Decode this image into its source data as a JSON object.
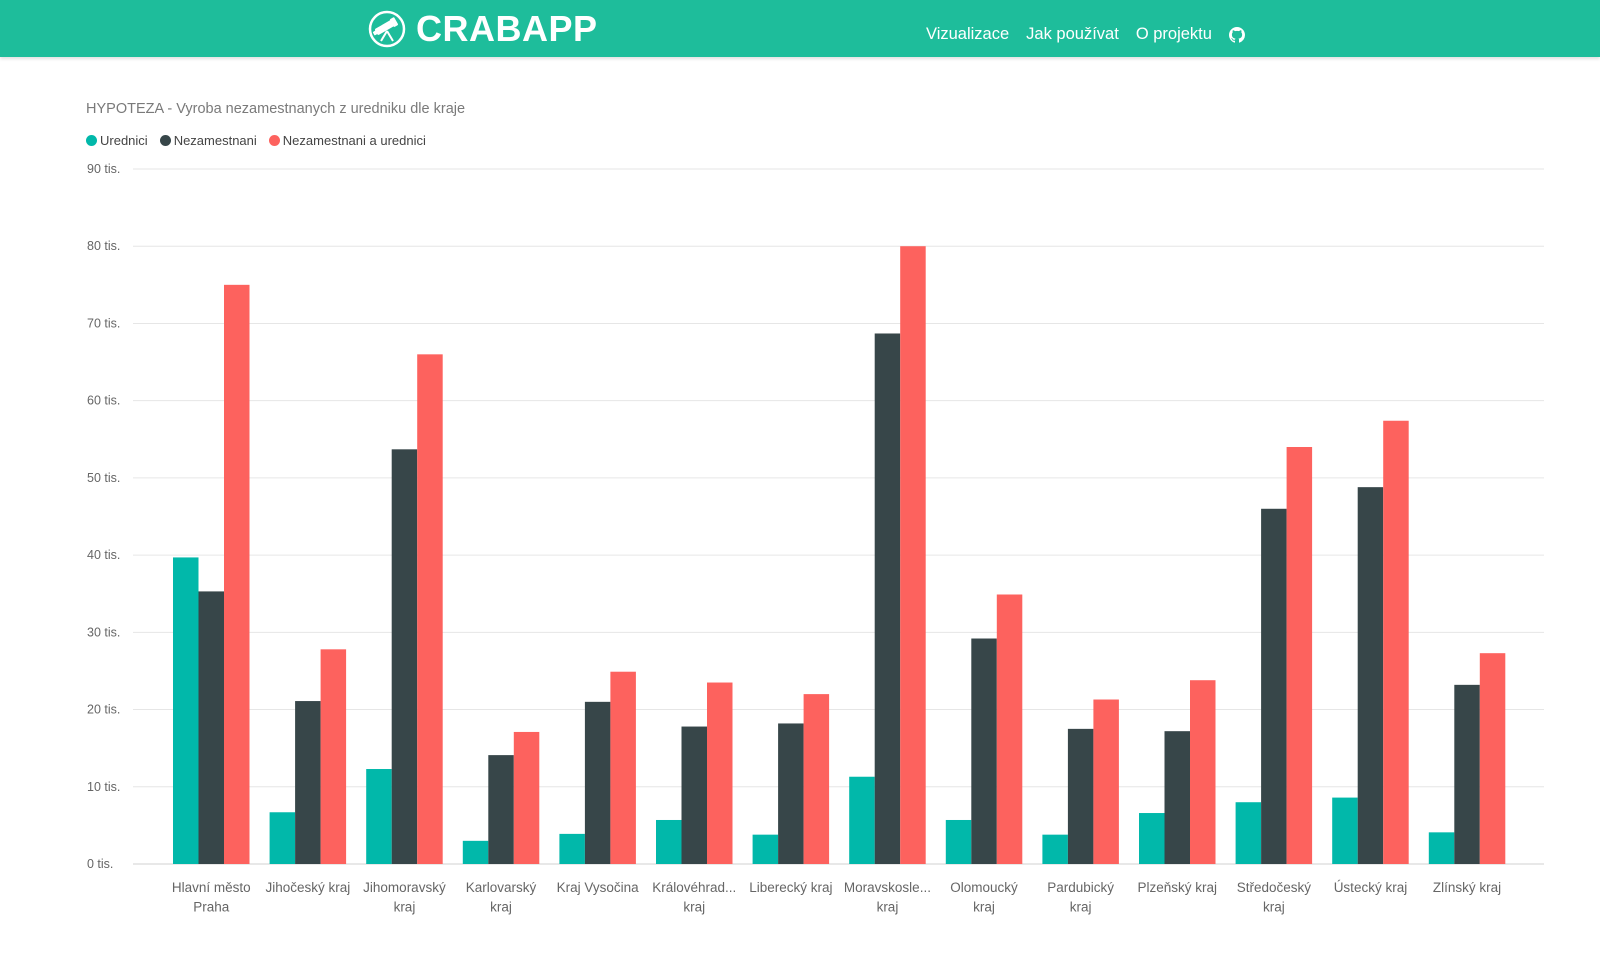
{
  "navbar": {
    "brand": "CRABAPP",
    "links": [
      "Vizualizace",
      "Jak používat",
      "O projektu"
    ],
    "github_icon": "github-icon",
    "logo_icon": "telescope-icon",
    "background_color": "#1ebd9b"
  },
  "chart_data": {
    "type": "bar",
    "title": "HYPOTEZA - Vyroba nezamestnanych z uredniku dle kraje",
    "xlabel": "",
    "ylabel": "",
    "ylim": [
      0,
      90000
    ],
    "ytick_values": [
      0,
      10000,
      20000,
      30000,
      40000,
      50000,
      60000,
      70000,
      80000,
      90000
    ],
    "ytick_labels": [
      "0 tis.",
      "10 tis.",
      "20 tis.",
      "30 tis.",
      "40 tis.",
      "50 tis.",
      "60 tis.",
      "70 tis.",
      "80 tis.",
      "90 tis."
    ],
    "grid": true,
    "legend_position": "top-left",
    "categories": [
      [
        "Hlavní město",
        "Praha"
      ],
      [
        "Jihočeský kraj"
      ],
      [
        "Jihomoravský",
        "kraj"
      ],
      [
        "Karlovarský",
        "kraj"
      ],
      [
        "Kraj Vysočina"
      ],
      [
        "Královéhrad...",
        "kraj"
      ],
      [
        "Liberecký kraj"
      ],
      [
        "Moravskosle...",
        "kraj"
      ],
      [
        "Olomoucký",
        "kraj"
      ],
      [
        "Pardubický",
        "kraj"
      ],
      [
        "Plzeňský kraj"
      ],
      [
        "Středočeský",
        "kraj"
      ],
      [
        "Ústecký kraj"
      ],
      [
        "Zlínský kraj"
      ]
    ],
    "series": [
      {
        "name": "Urednici",
        "color": "#01b8aa",
        "values": [
          39700,
          6700,
          12300,
          3000,
          3900,
          5700,
          3800,
          11300,
          5700,
          3800,
          6600,
          8000,
          8600,
          4100
        ]
      },
      {
        "name": "Nezamestnani",
        "color": "#374649",
        "values": [
          35300,
          21100,
          53700,
          14100,
          21000,
          17800,
          18200,
          68700,
          29200,
          17500,
          17200,
          46000,
          48800,
          23200
        ]
      },
      {
        "name": "Nezamestnani a urednici",
        "color": "#fd625e",
        "values": [
          75000,
          27800,
          66000,
          17100,
          24900,
          23500,
          22000,
          80000,
          34900,
          21300,
          23800,
          54000,
          57400,
          27300
        ]
      }
    ]
  }
}
